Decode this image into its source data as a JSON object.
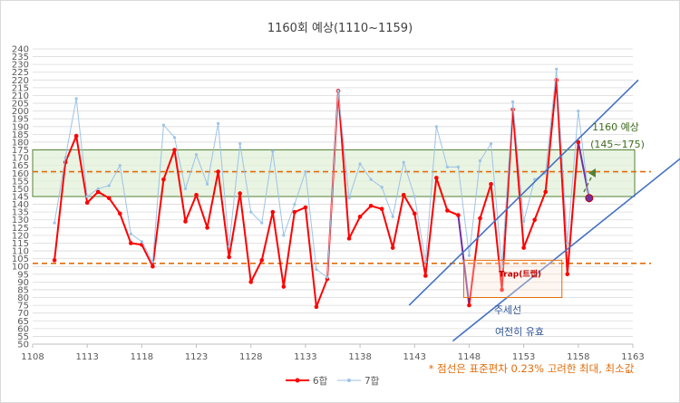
{
  "chart_data": {
    "type": "line",
    "title": "1160회 예상(1110~1159)",
    "xlabel": "",
    "ylabel": "",
    "xlim": [
      1108,
      1163
    ],
    "ylim": [
      50,
      240
    ],
    "x_ticks": [
      1108,
      1113,
      1118,
      1123,
      1128,
      1133,
      1138,
      1143,
      1148,
      1153,
      1158,
      1163
    ],
    "y_ticks": [
      50,
      55,
      60,
      65,
      70,
      75,
      80,
      85,
      90,
      95,
      100,
      105,
      110,
      115,
      120,
      125,
      130,
      135,
      140,
      145,
      150,
      155,
      160,
      165,
      170,
      175,
      180,
      185,
      190,
      195,
      200,
      205,
      210,
      215,
      220,
      225,
      230,
      235,
      240
    ],
    "grid": "horizontal",
    "legend_position": "bottom",
    "x": [
      1110,
      1111,
      1112,
      1113,
      1114,
      1115,
      1116,
      1117,
      1118,
      1119,
      1120,
      1121,
      1122,
      1123,
      1124,
      1125,
      1126,
      1127,
      1128,
      1129,
      1130,
      1131,
      1132,
      1133,
      1134,
      1135,
      1136,
      1137,
      1138,
      1139,
      1140,
      1141,
      1142,
      1143,
      1144,
      1145,
      1146,
      1147,
      1148,
      1149,
      1150,
      1151,
      1152,
      1153,
      1154,
      1155,
      1156,
      1157,
      1158,
      1159
    ],
    "series": [
      {
        "name": "6합",
        "color": "#ff0000",
        "values": [
          104,
          167,
          184,
          141,
          148,
          144,
          134,
          115,
          114,
          100,
          156,
          175,
          129,
          146,
          125,
          161,
          106,
          147,
          90,
          104,
          135,
          87,
          135,
          138,
          74,
          92,
          213,
          118,
          132,
          139,
          137,
          112,
          146,
          134,
          94,
          157,
          136,
          133,
          75,
          131,
          153,
          85,
          201,
          112,
          130,
          148,
          220,
          95,
          180,
          144
        ]
      },
      {
        "name": "7합",
        "color": "#9dc3e6",
        "values": [
          128,
          170,
          208,
          145,
          150,
          152,
          165,
          121,
          116,
          103,
          191,
          183,
          150,
          172,
          153,
          192,
          113,
          179,
          135,
          128,
          174,
          120,
          140,
          161,
          98,
          93,
          213,
          144,
          166,
          156,
          151,
          132,
          167,
          145,
          103,
          190,
          164,
          164,
          107,
          168,
          179,
          100,
          206,
          129,
          156,
          160,
          227,
          115,
          200,
          142
        ]
      }
    ],
    "bands": [
      {
        "from": 145,
        "to": 175,
        "color": "#e2f0d9",
        "border": "#548235"
      }
    ],
    "reference_lines": [
      {
        "y": 161,
        "color": "#e36c09",
        "style": "dashed"
      },
      {
        "y": 102,
        "color": "#e36c09",
        "style": "dashed"
      }
    ],
    "trend_lines": [
      {
        "from": [
          1142.5,
          75
        ],
        "to": [
          1163.5,
          220
        ],
        "color": "#4472c4"
      },
      {
        "from": [
          1146.5,
          52
        ],
        "to": [
          1171,
          190
        ],
        "color": "#4472c4"
      }
    ],
    "trap_box": {
      "x": [
        1147.5,
        1156.5
      ],
      "y": [
        80,
        104
      ],
      "label": "Trap(트랩)"
    },
    "annotations": {
      "forecast_label": "1160 예상",
      "forecast_range": "(145~175)",
      "trend_label": "주세선",
      "trend_valid": "여전히 유효",
      "footnote": "* 점선은 표준편차 0.23% 고려한 최대, 최소값"
    },
    "forecast_marker": {
      "x": 1159,
      "y": 144,
      "color": "#7030a0"
    },
    "highlight_segments": [
      {
        "series": "6합",
        "from": 1147,
        "to": 1148,
        "color": "#7030a0"
      },
      {
        "series": "6합",
        "from": 1158,
        "to": 1159,
        "color": "#7030a0"
      }
    ]
  }
}
